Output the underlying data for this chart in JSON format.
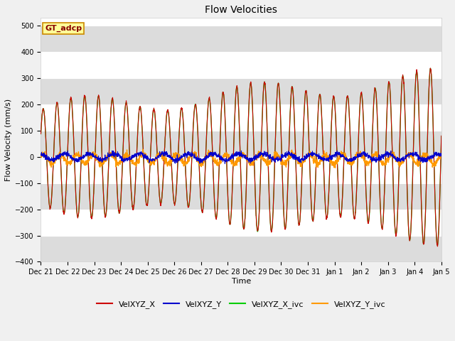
{
  "title": "Flow Velocities",
  "xlabel": "Time",
  "ylabel": "Flow Velocity (mm/s)",
  "ylim": [
    -400,
    530
  ],
  "yticks": [
    -400,
    -300,
    -200,
    -100,
    0,
    100,
    200,
    300,
    400,
    500
  ],
  "x_tick_labels": [
    "Dec 21",
    "Dec 22",
    "Dec 23",
    "Dec 24",
    "Dec 25",
    "Dec 26",
    "Dec 27",
    "Dec 28",
    "Dec 29",
    "Dec 30",
    "Dec 31",
    "Jan 1",
    "Jan 2",
    "Jan 3",
    "Jan 4",
    "Jan 5"
  ],
  "legend_labels": [
    "VelXYZ_X",
    "VelXYZ_Y",
    "VelXYZ_X_ivc",
    "VelXYZ_Y_ivc"
  ],
  "legend_colors": [
    "#cc0000",
    "#0000cc",
    "#00cc00",
    "#ff9900"
  ],
  "annotation_text": "GT_adcp",
  "annotation_facecolor": "#ffff99",
  "annotation_edgecolor": "#cc8800",
  "annotation_textcolor": "#880000",
  "fig_facecolor": "#f0f0f0",
  "plot_facecolor": "#f0f0f0",
  "band_light": "#ffffff",
  "band_dark": "#dcdcdc",
  "tidal_period": 0.518,
  "n_days": 15,
  "title_fontsize": 10,
  "axis_label_fontsize": 8,
  "tick_fontsize": 7,
  "legend_fontsize": 8
}
